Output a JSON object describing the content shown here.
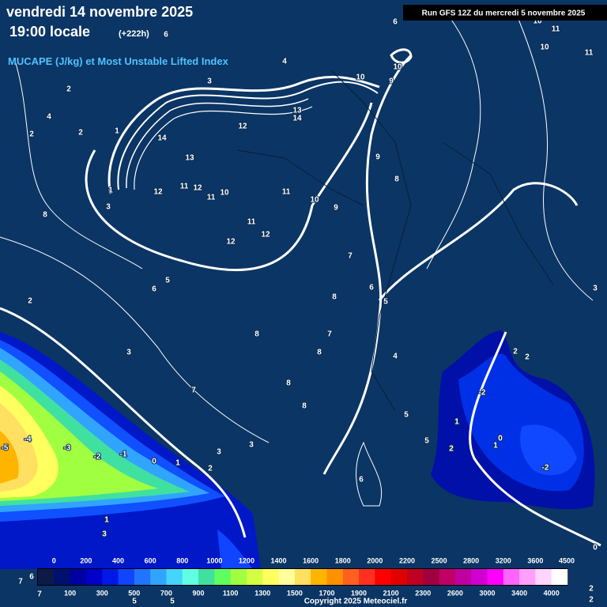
{
  "header": {
    "date": "vendredi 14 novembre 2025",
    "time": "19:00 locale",
    "offset": "(+222h)",
    "parameter": "MUCAPE (J/kg) et Most Unstable Lifted Index",
    "run": "Run GFS 12Z du mercredi 5 novembre 2025",
    "copyright": "Copyright 2025 Meteociel.fr"
  },
  "legend": {
    "top_labels": [
      0,
      200,
      400,
      600,
      800,
      1000,
      1200,
      1400,
      1600,
      1800,
      2000,
      2200,
      2500,
      2800,
      3200,
      3600,
      4500
    ],
    "bottom_labels": [
      100,
      300,
      500,
      700,
      900,
      1100,
      1300,
      1500,
      1700,
      1900,
      2100,
      2300,
      2600,
      3000,
      3400,
      4000
    ],
    "colors": [
      "#0d1a48",
      "#00106e",
      "#0000a0",
      "#0000c8",
      "#0018e6",
      "#1044ff",
      "#2074ff",
      "#30a4ff",
      "#44d4ff",
      "#60ffe4",
      "#40e0a0",
      "#60ff60",
      "#a0ff40",
      "#d4ff40",
      "#ffff60",
      "#ffff9c",
      "#ffe060",
      "#ffb400",
      "#ff9000",
      "#ff6020",
      "#ff3020",
      "#ff0000",
      "#e00000",
      "#c00020",
      "#a00040",
      "#c00064",
      "#c000a0",
      "#d000d0",
      "#ff00ff",
      "#ff64ff",
      "#ffa0ff",
      "#ffd4ff",
      "#ffffff"
    ]
  },
  "contour_labels": [
    6,
    4,
    3,
    2,
    4,
    2,
    2,
    1,
    14,
    13,
    12,
    13,
    14,
    11,
    12,
    11,
    10,
    12,
    1,
    3,
    8,
    11,
    10,
    9,
    9,
    8,
    11,
    12,
    12,
    7,
    6,
    5,
    5,
    6,
    8,
    2,
    8,
    7,
    8,
    3,
    4,
    2,
    2,
    -2,
    7,
    8,
    8,
    5,
    1,
    5,
    0,
    1,
    2,
    -2,
    -5,
    -4,
    -3,
    -2,
    -1,
    0,
    1,
    2,
    3,
    3,
    6,
    1,
    3,
    10,
    9,
    10,
    10,
    11,
    11,
    10,
    6,
    3,
    0,
    2,
    2,
    6,
    7,
    7,
    5,
    5
  ]
}
